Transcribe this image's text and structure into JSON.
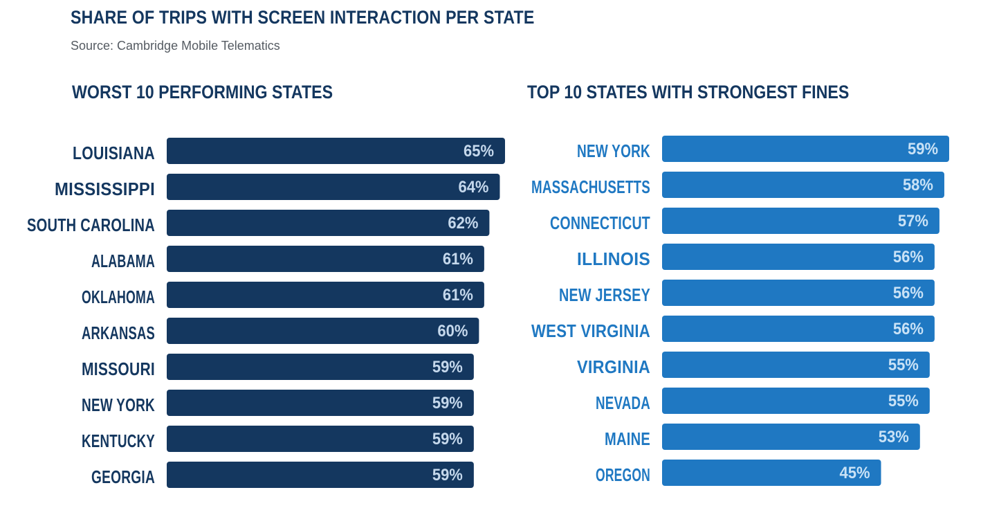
{
  "header": {
    "title": "SHARE OF TRIPS WITH SCREEN INTERACTION PER STATE",
    "source": "Source: Cambridge Mobile Telematics"
  },
  "colors": {
    "title": "#14375f",
    "left_bar": "#14375f",
    "left_label": "#14375f",
    "left_value_text": "#c5d8ec",
    "right_bar": "#1f78c2",
    "right_label": "#1f78c2",
    "right_value_text": "#c9e2f6"
  },
  "chart_data": [
    {
      "type": "bar",
      "orientation": "horizontal",
      "title": "WORST 10 PERFORMING STATES",
      "categories": [
        "LOUISIANA",
        "MISSISSIPPI",
        "SOUTH CAROLINA",
        "ALABAMA",
        "OKLAHOMA",
        "ARKANSAS",
        "MISSOURI",
        "NEW YORK",
        "KENTUCKY",
        "GEORGIA"
      ],
      "values": [
        65,
        64,
        62,
        61,
        61,
        60,
        59,
        59,
        59,
        59
      ],
      "value_labels": [
        "65%",
        "64%",
        "62%",
        "61%",
        "61%",
        "60%",
        "59%",
        "59%",
        "59%",
        "59%"
      ],
      "unit": "%",
      "xlabel": "",
      "ylabel": "",
      "grid": false,
      "legend": "none"
    },
    {
      "type": "bar",
      "orientation": "horizontal",
      "title": "TOP 10 STATES WITH STRONGEST FINES",
      "categories": [
        "NEW YORK",
        "MASSACHUSETTS",
        "CONNECTICUT",
        "ILLINOIS",
        "NEW JERSEY",
        "WEST VIRGINIA",
        "VIRGINIA",
        "NEVADA",
        "MAINE",
        "OREGON"
      ],
      "values": [
        59,
        58,
        57,
        56,
        56,
        56,
        55,
        55,
        53,
        45
      ],
      "value_labels": [
        "59%",
        "58%",
        "57%",
        "56%",
        "56%",
        "56%",
        "55%",
        "55%",
        "53%",
        "45%"
      ],
      "unit": "%",
      "xlabel": "",
      "ylabel": "",
      "grid": false,
      "legend": "none"
    }
  ]
}
